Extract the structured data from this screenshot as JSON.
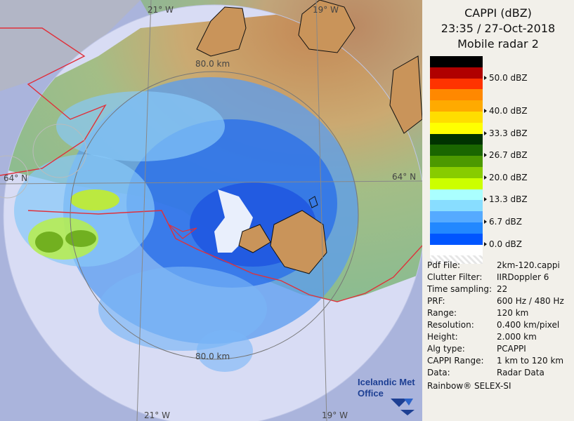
{
  "header": {
    "product": "CAPPI (dBZ)",
    "datetime": "23:35 / 27-Oct-2018",
    "radar": "Mobile radar 2"
  },
  "legend": [
    {
      "color": "#000000",
      "label": ""
    },
    {
      "color": "#b00000",
      "label": "50.0 dBZ"
    },
    {
      "color": "#ff3300",
      "label": ""
    },
    {
      "color": "#ff8800",
      "label": ""
    },
    {
      "color": "#ffaa00",
      "label": "40.0 dBZ"
    },
    {
      "color": "#ffdd00",
      "label": ""
    },
    {
      "color": "#ffff00",
      "label": "33.3 dBZ"
    },
    {
      "color": "#003300",
      "label": ""
    },
    {
      "color": "#1a6600",
      "label": "26.7 dBZ"
    },
    {
      "color": "#4c9900",
      "label": ""
    },
    {
      "color": "#88cc00",
      "label": "20.0 dBZ"
    },
    {
      "color": "#ccff00",
      "label": ""
    },
    {
      "color": "#aaffff",
      "label": "13.3 dBZ"
    },
    {
      "color": "#88ddff",
      "label": ""
    },
    {
      "color": "#55aaff",
      "label": "6.7 dBZ"
    },
    {
      "color": "#2288ff",
      "label": ""
    },
    {
      "color": "#0055ff",
      "label": "0.0 dBZ"
    },
    {
      "color": "#ffffff",
      "label": ""
    }
  ],
  "metadata": [
    {
      "key": "Pdf File:",
      "value": "2km-120.cappi"
    },
    {
      "key": "Clutter Filter:",
      "value": "IIRDoppler 6"
    },
    {
      "key": "Time sampling:",
      "value": "22"
    },
    {
      "key": "PRF:",
      "value": "600 Hz / 480 Hz"
    },
    {
      "key": "Range:",
      "value": "120 km"
    },
    {
      "key": "Resolution:",
      "value": "0.400 km/pixel"
    },
    {
      "key": "Height:",
      "value": "2.000 km"
    },
    {
      "key": "Alg type:",
      "value": "PCAPPI"
    },
    {
      "key": "CAPPI Range:",
      "value": "1 km to 120 km"
    },
    {
      "key": "Data:",
      "value": "Radar Data"
    }
  ],
  "footer": "Rainbow® SELEX-SI",
  "map_labels": {
    "lon_w21_top": "21° W",
    "lon_w19_top": "19° W",
    "lon_w21_bottom": "21° W",
    "lon_w19_bottom": "19° W",
    "lat_64_left": "64° N",
    "lat_64_right": "64° N",
    "range_80_top": "80.0 km",
    "range_80_bottom": "80.0 km"
  },
  "logo": {
    "line1": "Icelandic Met",
    "line2": "Office"
  }
}
